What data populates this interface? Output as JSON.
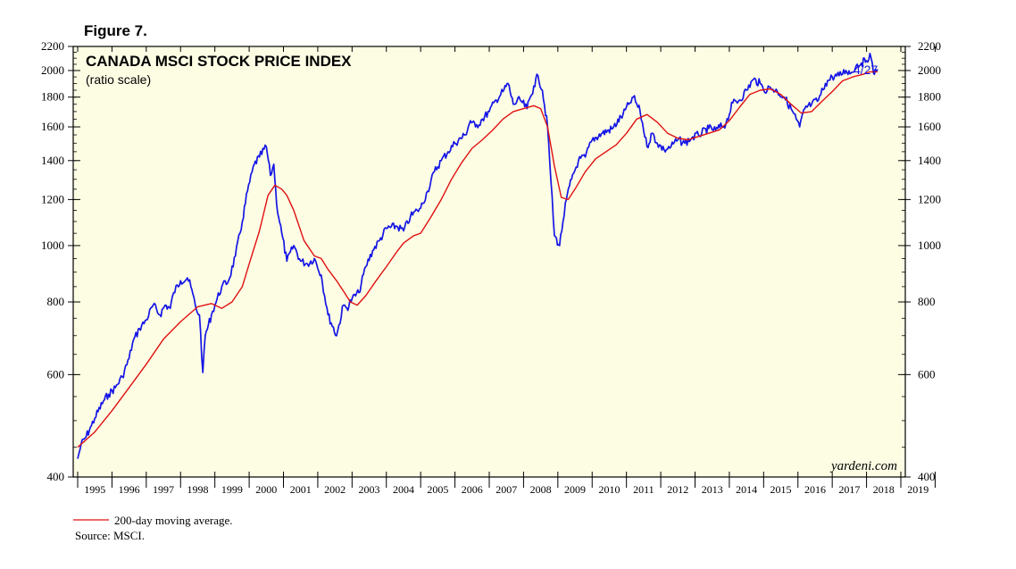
{
  "figure_label": "Figure 7.",
  "watermark": "yardeni.com",
  "footer": {
    "legend_label": "200-day moving average.",
    "source": "Source: MSCI."
  },
  "colors": {
    "price_line": "#1515e6",
    "ma_line": "#e01010",
    "plot_bg": "#fdfde4",
    "axis": "#000000",
    "last_label": "#1515e6"
  },
  "chart_data": {
    "type": "line",
    "title": "CANADA MSCI STOCK PRICE INDEX",
    "subtitle": "(ratio scale)",
    "xlabel": "",
    "ylabel": "",
    "y_scale": "log",
    "ylim": [
      400,
      2200
    ],
    "xlim": [
      1995.0,
      2019.0
    ],
    "y_ticks": [
      400,
      600,
      800,
      1000,
      1200,
      1400,
      1600,
      1800,
      2000,
      2200
    ],
    "y_tick_labels": [
      "400",
      "600",
      "800",
      "1000",
      "1200",
      "1400",
      "1600",
      "1800",
      "2000",
      "2200"
    ],
    "x_tick_labels": [
      "1995",
      "1996",
      "1997",
      "1998",
      "1999",
      "2000",
      "2001",
      "2002",
      "2003",
      "2004",
      "2005",
      "2006",
      "2007",
      "2008",
      "2009",
      "2010",
      "2011",
      "2012",
      "2013",
      "2014",
      "2015",
      "2016",
      "2017",
      "2018",
      "2019"
    ],
    "last_value_label": "4/27",
    "series": [
      {
        "name": "Canada MSCI stock price index",
        "x": [
          1995.0,
          1995.1,
          1995.25,
          1995.4,
          1995.5,
          1995.75,
          1995.9,
          1996.1,
          1996.3,
          1996.5,
          1996.6,
          1996.8,
          1997.0,
          1997.2,
          1997.4,
          1997.55,
          1997.7,
          1997.8,
          1998.0,
          1998.2,
          1998.3,
          1998.45,
          1998.55,
          1998.65,
          1998.72,
          1998.9,
          1999.0,
          1999.2,
          1999.4,
          1999.6,
          1999.8,
          1999.95,
          2000.15,
          2000.3,
          2000.5,
          2000.62,
          2000.72,
          2000.8,
          2000.95,
          2001.1,
          2001.3,
          2001.5,
          2001.7,
          2001.9,
          2002.1,
          2002.3,
          2002.55,
          2002.75,
          2002.85,
          2003.0,
          2003.2,
          2003.4,
          2003.6,
          2003.8,
          2004.0,
          2004.3,
          2004.5,
          2004.7,
          2004.9,
          2005.0,
          2005.2,
          2005.4,
          2005.6,
          2005.8,
          2006.0,
          2006.3,
          2006.45,
          2006.6,
          2006.8,
          2007.0,
          2007.2,
          2007.4,
          2007.55,
          2007.7,
          2007.9,
          2008.1,
          2008.3,
          2008.42,
          2008.55,
          2008.7,
          2008.8,
          2008.9,
          2009.05,
          2009.15,
          2009.25,
          2009.4,
          2009.6,
          2009.8,
          2010.0,
          2010.3,
          2010.6,
          2010.9,
          2011.1,
          2011.2,
          2011.4,
          2011.6,
          2011.75,
          2011.9,
          2012.1,
          2012.3,
          2012.5,
          2012.7,
          2012.9,
          2013.1,
          2013.4,
          2013.6,
          2013.9,
          2014.1,
          2014.3,
          2014.5,
          2014.7,
          2014.9,
          2015.0,
          2015.2,
          2015.4,
          2015.6,
          2015.8,
          2015.95,
          2016.05,
          2016.2,
          2016.4,
          2016.6,
          2016.8,
          2017.0,
          2017.2,
          2017.4,
          2017.55,
          2017.7,
          2017.85,
          2018.0,
          2018.1,
          2018.2,
          2018.32
        ],
        "values": [
          430,
          455,
          470,
          490,
          505,
          540,
          555,
          570,
          595,
          640,
          680,
          720,
          745,
          790,
          760,
          790,
          780,
          830,
          870,
          880,
          850,
          780,
          760,
          605,
          700,
          760,
          790,
          850,
          870,
          960,
          1100,
          1240,
          1380,
          1420,
          1480,
          1320,
          1380,
          1180,
          1050,
          940,
          1000,
          940,
          930,
          950,
          890,
          760,
          700,
          790,
          780,
          810,
          830,
          920,
          980,
          1020,
          1070,
          1080,
          1060,
          1120,
          1150,
          1160,
          1240,
          1340,
          1400,
          1450,
          1500,
          1550,
          1640,
          1600,
          1650,
          1700,
          1780,
          1840,
          1900,
          1750,
          1780,
          1720,
          1880,
          1960,
          1850,
          1600,
          1290,
          1040,
          1000,
          1100,
          1200,
          1300,
          1400,
          1420,
          1520,
          1560,
          1590,
          1680,
          1760,
          1800,
          1700,
          1480,
          1560,
          1500,
          1460,
          1480,
          1520,
          1500,
          1530,
          1550,
          1590,
          1580,
          1620,
          1760,
          1780,
          1850,
          1930,
          1900,
          1850,
          1870,
          1840,
          1800,
          1720,
          1650,
          1600,
          1720,
          1750,
          1780,
          1900,
          1950,
          1960,
          2000,
          1980,
          2040,
          2060,
          2080,
          2140,
          1980,
          2010
        ],
        "color": "#1515e6"
      },
      {
        "name": "200-day moving average",
        "x": [
          1995.0,
          1995.5,
          1996.0,
          1996.5,
          1997.0,
          1997.5,
          1998.0,
          1998.5,
          1998.9,
          1999.2,
          1999.5,
          1999.8,
          2000.0,
          2000.3,
          2000.55,
          2000.75,
          2000.95,
          2001.1,
          2001.3,
          2001.6,
          2001.9,
          2002.1,
          2002.3,
          2002.55,
          2002.75,
          2002.95,
          2003.15,
          2003.4,
          2003.7,
          2004.0,
          2004.3,
          2004.5,
          2004.8,
          2005.0,
          2005.3,
          2005.6,
          2005.9,
          2006.2,
          2006.5,
          2006.8,
          2007.1,
          2007.4,
          2007.7,
          2008.0,
          2008.3,
          2008.5,
          2008.7,
          2008.9,
          2009.1,
          2009.3,
          2009.5,
          2009.8,
          2010.1,
          2010.4,
          2010.7,
          2011.0,
          2011.3,
          2011.6,
          2011.9,
          2012.2,
          2012.5,
          2012.8,
          2013.1,
          2013.4,
          2013.7,
          2014.0,
          2014.3,
          2014.6,
          2014.9,
          2015.2,
          2015.5,
          2015.8,
          2016.1,
          2016.4,
          2016.7,
          2017.0,
          2017.3,
          2017.6,
          2017.9,
          2018.1,
          2018.32
        ],
        "values": [
          450,
          478,
          520,
          570,
          625,
          690,
          740,
          785,
          795,
          780,
          800,
          850,
          930,
          1060,
          1220,
          1270,
          1250,
          1220,
          1150,
          1020,
          960,
          950,
          910,
          870,
          835,
          800,
          790,
          820,
          870,
          920,
          975,
          1010,
          1040,
          1050,
          1120,
          1200,
          1300,
          1390,
          1470,
          1520,
          1580,
          1650,
          1700,
          1720,
          1740,
          1720,
          1600,
          1370,
          1210,
          1200,
          1250,
          1340,
          1410,
          1450,
          1490,
          1560,
          1650,
          1680,
          1630,
          1560,
          1530,
          1520,
          1540,
          1560,
          1580,
          1640,
          1730,
          1820,
          1850,
          1860,
          1820,
          1750,
          1690,
          1700,
          1770,
          1840,
          1920,
          1950,
          1970,
          1990,
          1990
        ],
        "color": "#e01010"
      }
    ]
  }
}
